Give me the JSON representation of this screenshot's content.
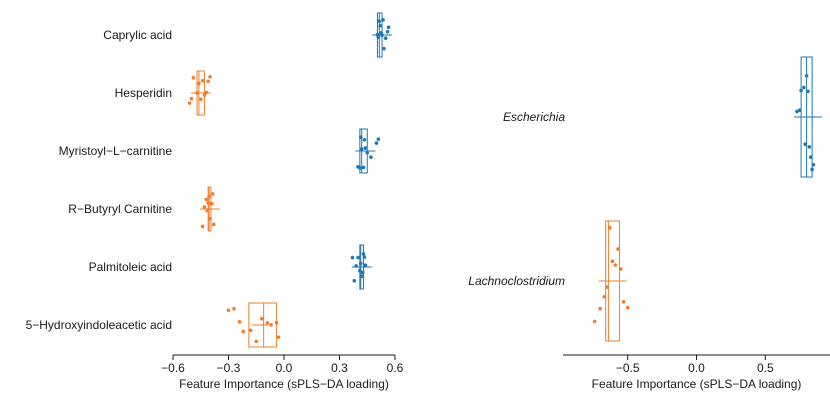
{
  "colors": {
    "positive": "#1f77b4",
    "negative": "#ef7f2e",
    "axis": "#1a1a1a"
  },
  "chart_data": [
    {
      "type": "box",
      "xlabel": "Feature Importance (sPLS−DA loading)",
      "xlim": [
        -0.6,
        0.6
      ],
      "xticks": [
        -0.6,
        -0.3,
        0.0,
        0.3,
        0.6
      ],
      "xtick_labels": [
        "−0.6",
        "−0.3",
        "0.0",
        "0.3",
        "0.6"
      ],
      "features": [
        {
          "name": "Caprylic acid",
          "italic": false,
          "color": "positive",
          "box": {
            "q1": 0.505,
            "median": 0.515,
            "q3": 0.53,
            "mean": 0.53
          },
          "points": [
            0.505,
            0.51,
            0.515,
            0.52,
            0.525,
            0.53,
            0.535,
            0.54,
            0.55,
            0.56,
            0.565
          ]
        },
        {
          "name": "Hesperidin",
          "italic": false,
          "color": "negative",
          "box": {
            "q1": -0.47,
            "median": -0.46,
            "q3": -0.43,
            "mean": -0.45
          },
          "points": [
            -0.51,
            -0.5,
            -0.49,
            -0.47,
            -0.46,
            -0.45,
            -0.44,
            -0.43,
            -0.42,
            -0.41,
            -0.4
          ]
        },
        {
          "name": "Myristoyl−L−carnitine",
          "italic": false,
          "color": "positive",
          "box": {
            "q1": 0.41,
            "median": 0.42,
            "q3": 0.45,
            "mean": 0.44
          },
          "points": [
            0.4,
            0.41,
            0.415,
            0.42,
            0.43,
            0.435,
            0.44,
            0.45,
            0.47,
            0.5,
            0.51
          ]
        },
        {
          "name": "R−Butyryl Carnitine",
          "italic": false,
          "color": "negative",
          "box": {
            "q1": -0.41,
            "median": -0.405,
            "q3": -0.395,
            "mean": -0.4
          },
          "points": [
            -0.44,
            -0.43,
            -0.42,
            -0.415,
            -0.41,
            -0.405,
            -0.4,
            -0.395,
            -0.39,
            -0.385,
            -0.38
          ]
        },
        {
          "name": "Palmitoleic acid",
          "italic": false,
          "color": "positive",
          "box": {
            "q1": 0.41,
            "median": 0.415,
            "q3": 0.43,
            "mean": 0.42
          },
          "points": [
            0.37,
            0.38,
            0.39,
            0.4,
            0.41,
            0.415,
            0.42,
            0.425,
            0.43,
            0.435,
            0.44
          ]
        },
        {
          "name": "5−Hydroxyindoleacetic acid",
          "italic": false,
          "color": "negative",
          "box": {
            "q1": -0.19,
            "median": -0.11,
            "q3": -0.04,
            "mean": -0.12
          },
          "points": [
            -0.3,
            -0.27,
            -0.24,
            -0.22,
            -0.18,
            -0.15,
            -0.12,
            -0.09,
            -0.07,
            -0.04,
            -0.03
          ]
        }
      ]
    },
    {
      "type": "box",
      "xlabel": "Feature Importance (sPLS−DA loading)",
      "xlim": [
        -0.97,
        0.97
      ],
      "xticks": [
        -0.5,
        0.0,
        0.5
      ],
      "xtick_labels": [
        "−0.5",
        "0.0",
        "0.5"
      ],
      "features": [
        {
          "name": "Escherichia",
          "italic": true,
          "color": "positive",
          "box": {
            "q1": 0.76,
            "median": 0.8,
            "q3": 0.84,
            "mean": 0.81
          },
          "points": [
            0.73,
            0.75,
            0.76,
            0.78,
            0.79,
            0.8,
            0.81,
            0.82,
            0.83,
            0.84,
            0.85
          ]
        },
        {
          "name": "Lachnoclostridium",
          "italic": true,
          "color": "negative",
          "box": {
            "q1": -0.66,
            "median": -0.64,
            "q3": -0.56,
            "mean": -0.61
          },
          "points": [
            -0.74,
            -0.7,
            -0.67,
            -0.65,
            -0.63,
            -0.61,
            -0.59,
            -0.57,
            -0.55,
            -0.53,
            -0.5
          ]
        }
      ]
    }
  ]
}
